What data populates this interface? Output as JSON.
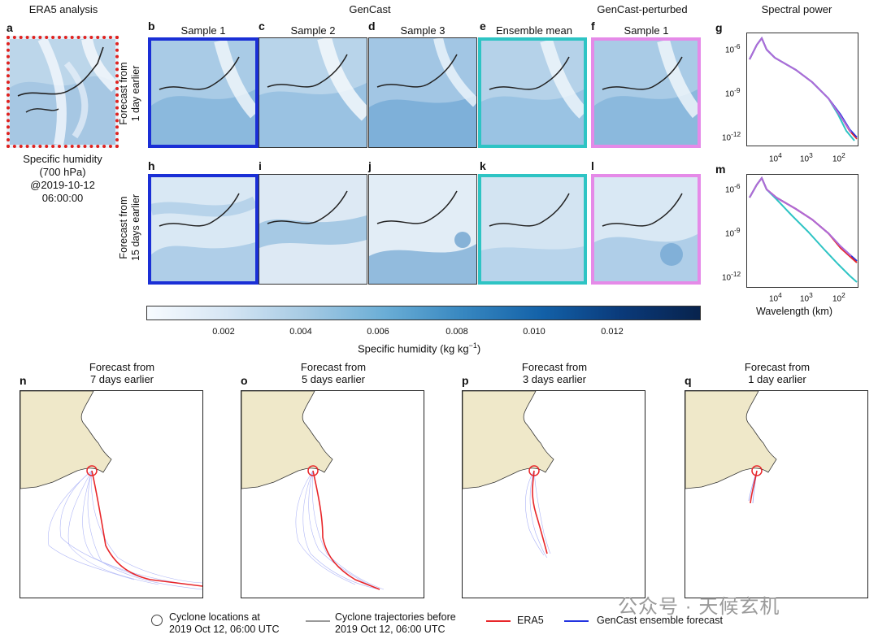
{
  "headers": {
    "era5": "ERA5 analysis",
    "gencast": "GenCast",
    "perturbed": "GenCast-perturbed",
    "spectral": "Spectral power"
  },
  "panel_labels": {
    "a": "a",
    "b": "b",
    "c": "c",
    "d": "d",
    "e": "e",
    "f": "f",
    "g": "g",
    "h": "h",
    "i": "i",
    "j": "j",
    "k": "k",
    "l": "l",
    "m": "m",
    "n": "n",
    "o": "o",
    "p": "p",
    "q": "q"
  },
  "column_titles": [
    "Sample 1",
    "Sample 2",
    "Sample 3",
    "Ensemble mean",
    "Sample 1"
  ],
  "row_labels": {
    "row1_line1": "Forecast from",
    "row1_line2": "1 day earlier",
    "row2_line1": "Forecast from",
    "row2_line2": "15 days earlier"
  },
  "era5_caption": {
    "line1": "Specific humidity",
    "line2": "(700 hPa)",
    "line3": "@2019-10-12",
    "line4": "06:00:00"
  },
  "spectral_axes": {
    "y_ticks": [
      "10",
      "10",
      "10"
    ],
    "y_exps": [
      "-6",
      "-9",
      "-12"
    ],
    "x_ticks": [
      "10",
      "10",
      "10"
    ],
    "x_exps": [
      "4",
      "3",
      "2"
    ],
    "xlabel": "Wavelength (km)"
  },
  "colorbar": {
    "ticks": [
      "0.002",
      "0.004",
      "0.006",
      "0.008",
      "0.010",
      "0.012"
    ],
    "label_main": "Specific humidity (kg kg",
    "label_exp": "−1",
    "label_end": ")"
  },
  "cyclone_panels": [
    {
      "title1": "Forecast from",
      "title2": "7 days earlier"
    },
    {
      "title1": "Forecast from",
      "title2": "5 days earlier"
    },
    {
      "title1": "Forecast from",
      "title2": "3 days earlier"
    },
    {
      "title1": "Forecast from",
      "title2": "1 day earlier"
    }
  ],
  "legend": {
    "locations1": "Cyclone locations at",
    "locations2": "2019 Oct 12, 06:00 UTC",
    "trajectories1": "Cyclone trajectories before",
    "trajectories2": "2019 Oct 12, 06:00 UTC",
    "era5": "ERA5",
    "gencast": "GenCast ensemble forecast"
  },
  "watermark": "公众号 · 天候玄机",
  "colors": {
    "era5_line": "#e8262a",
    "gencast_line": "#2233e0",
    "sample_frame": "#1a2fd6",
    "mean_frame": "#2ec4c4",
    "perturbed_frame": "#e58ae8",
    "spectrum_purple": "#b06ad8"
  }
}
